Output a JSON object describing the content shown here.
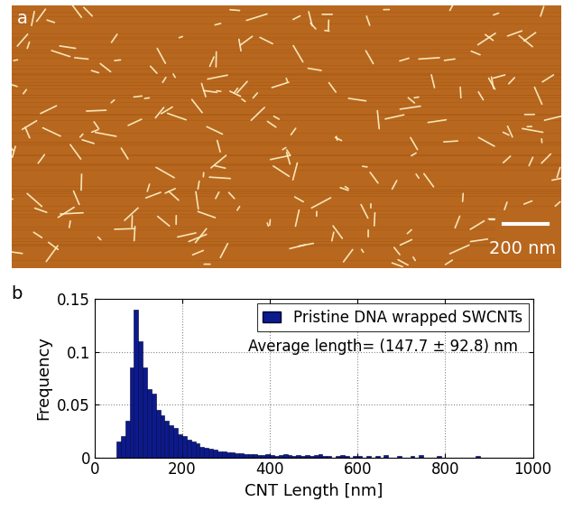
{
  "chart_data": [
    {
      "type": "image",
      "panel_label": "a",
      "annotations": [
        "200 nm"
      ]
    },
    {
      "type": "histogram",
      "panel_label": "b",
      "xlabel": "CNT Length [nm]",
      "ylabel": "Frequency",
      "annotations": [
        "Average length= (147.7 ± 92.8) nm"
      ],
      "bins": [
        50,
        60,
        70,
        80,
        90,
        100,
        110,
        120,
        130,
        140,
        150,
        160,
        170,
        180,
        190,
        200,
        210,
        220,
        230,
        240,
        250,
        260,
        270,
        280,
        290,
        300,
        310,
        320,
        330,
        340,
        350,
        360,
        370,
        380,
        390,
        400,
        410,
        420,
        430,
        440,
        450,
        460,
        470,
        480,
        490,
        500,
        510,
        520,
        530,
        540,
        550,
        560,
        570,
        580,
        590,
        600,
        610,
        620,
        630,
        640,
        650,
        660,
        670,
        680,
        690,
        700,
        710,
        720,
        730,
        740,
        750,
        760,
        770,
        780,
        790,
        800,
        810,
        820,
        830,
        840,
        850,
        860,
        870,
        880
      ],
      "series": [
        {
          "name": "Pristine DNA wrapped SWCNTs",
          "color": "#0b1a8c",
          "values": [
            0.015,
            0.02,
            0.035,
            0.085,
            0.14,
            0.11,
            0.085,
            0.065,
            0.06,
            0.045,
            0.04,
            0.035,
            0.03,
            0.028,
            0.022,
            0.02,
            0.017,
            0.015,
            0.013,
            0.01,
            0.009,
            0.008,
            0.007,
            0.006,
            0.006,
            0.005,
            0.005,
            0.004,
            0.004,
            0.003,
            0.003,
            0.003,
            0.002,
            0.002,
            0.003,
            0.002,
            0.001,
            0.002,
            0.003,
            0.002,
            0.001,
            0.002,
            0.001,
            0.002,
            0.001,
            0.002,
            0.003,
            0.001,
            0.001,
            0,
            0.001,
            0.002,
            0.001,
            0,
            0.001,
            0.001,
            0,
            0.001,
            0,
            0.001,
            0,
            0.002,
            0,
            0,
            0.001,
            0,
            0,
            0.001,
            0,
            0.002,
            0,
            0,
            0,
            0.001,
            0,
            0,
            0,
            0,
            0,
            0,
            0,
            0,
            0.001
          ]
        }
      ],
      "xlim": [
        0,
        1000
      ],
      "xticks": [
        0,
        200,
        400,
        600,
        800,
        1000
      ],
      "ylim": [
        0,
        0.15
      ],
      "yticks": [
        0,
        0.05,
        0.1,
        0.15
      ],
      "grid": true,
      "legend": "upper right"
    }
  ]
}
